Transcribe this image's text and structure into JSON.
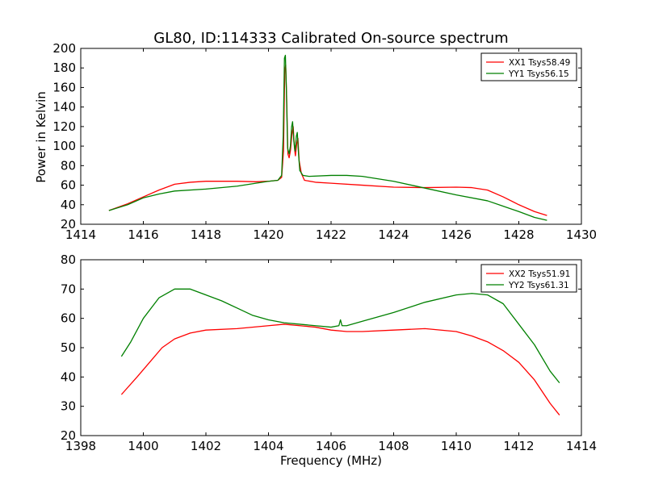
{
  "figure": {
    "title": "GL80, ID:114333 Calibrated On-source spectrum",
    "ylabel": "Power in Kelvin",
    "xlabel": "Frequency (MHz)"
  },
  "chart_data": [
    {
      "type": "line",
      "title": "GL80, ID:114333 Calibrated On-source spectrum",
      "ylabel": "Power in Kelvin",
      "xlabel": "",
      "xlim": [
        1414,
        1430
      ],
      "ylim": [
        20,
        200
      ],
      "xticks": [
        1414,
        1416,
        1418,
        1420,
        1422,
        1424,
        1426,
        1428,
        1430
      ],
      "yticks": [
        20,
        40,
        60,
        80,
        100,
        120,
        140,
        160,
        180,
        200
      ],
      "grid": false,
      "legend_position": "top-right",
      "series": [
        {
          "name": "XX1 Tsys58.49",
          "color": "#ff0000",
          "points": [
            [
              1414.9,
              34
            ],
            [
              1415.5,
              41
            ],
            [
              1416.0,
              48
            ],
            [
              1416.5,
              55
            ],
            [
              1417.0,
              61
            ],
            [
              1417.5,
              63
            ],
            [
              1418.0,
              64
            ],
            [
              1419.0,
              64
            ],
            [
              1419.6,
              63.5
            ],
            [
              1420.0,
              64
            ],
            [
              1420.3,
              65
            ],
            [
              1420.42,
              68
            ],
            [
              1420.48,
              95
            ],
            [
              1420.52,
              178
            ],
            [
              1420.55,
              183
            ],
            [
              1420.58,
              150
            ],
            [
              1420.62,
              92
            ],
            [
              1420.66,
              88
            ],
            [
              1420.7,
              95
            ],
            [
              1420.75,
              112
            ],
            [
              1420.79,
              120
            ],
            [
              1420.83,
              98
            ],
            [
              1420.86,
              90
            ],
            [
              1420.9,
              102
            ],
            [
              1420.94,
              108
            ],
            [
              1420.98,
              85
            ],
            [
              1421.05,
              72
            ],
            [
              1421.15,
              65
            ],
            [
              1421.5,
              63
            ],
            [
              1422.0,
              62
            ],
            [
              1423.0,
              60
            ],
            [
              1424.0,
              58
            ],
            [
              1425.0,
              57.5
            ],
            [
              1426.0,
              58
            ],
            [
              1426.5,
              57.5
            ],
            [
              1427.0,
              55
            ],
            [
              1427.5,
              48
            ],
            [
              1428.0,
              40
            ],
            [
              1428.5,
              33
            ],
            [
              1428.9,
              29
            ]
          ]
        },
        {
          "name": "YY1 Tsys56.15",
          "color": "#008000",
          "points": [
            [
              1414.9,
              34
            ],
            [
              1415.5,
              40
            ],
            [
              1416.0,
              47
            ],
            [
              1416.5,
              51
            ],
            [
              1417.0,
              54
            ],
            [
              1418.0,
              56
            ],
            [
              1419.0,
              59
            ],
            [
              1419.6,
              62
            ],
            [
              1420.0,
              64
            ],
            [
              1420.3,
              65
            ],
            [
              1420.42,
              70
            ],
            [
              1420.47,
              110
            ],
            [
              1420.51,
              190
            ],
            [
              1420.54,
              193
            ],
            [
              1420.57,
              160
            ],
            [
              1420.61,
              98
            ],
            [
              1420.66,
              92
            ],
            [
              1420.7,
              100
            ],
            [
              1420.74,
              120
            ],
            [
              1420.77,
              125
            ],
            [
              1420.81,
              105
            ],
            [
              1420.85,
              95
            ],
            [
              1420.89,
              110
            ],
            [
              1420.92,
              114
            ],
            [
              1420.96,
              92
            ],
            [
              1421.0,
              75
            ],
            [
              1421.1,
              70
            ],
            [
              1421.3,
              69
            ],
            [
              1422.0,
              70
            ],
            [
              1422.5,
              70
            ],
            [
              1423.0,
              69
            ],
            [
              1424.0,
              64
            ],
            [
              1425.0,
              57
            ],
            [
              1426.0,
              50
            ],
            [
              1427.0,
              44
            ],
            [
              1428.0,
              33
            ],
            [
              1428.5,
              27
            ],
            [
              1428.9,
              24
            ]
          ]
        }
      ]
    },
    {
      "type": "line",
      "title": "",
      "ylabel": "",
      "xlabel": "Frequency (MHz)",
      "xlim": [
        1398,
        1414
      ],
      "ylim": [
        20,
        80
      ],
      "xticks": [
        1398,
        1400,
        1402,
        1404,
        1406,
        1408,
        1410,
        1412,
        1414
      ],
      "yticks": [
        20,
        30,
        40,
        50,
        60,
        70,
        80
      ],
      "grid": false,
      "legend_position": "top-right",
      "series": [
        {
          "name": "XX2 Tsys51.91",
          "color": "#ff0000",
          "points": [
            [
              1399.3,
              34
            ],
            [
              1399.8,
              40
            ],
            [
              1400.2,
              45
            ],
            [
              1400.6,
              50
            ],
            [
              1401.0,
              53
            ],
            [
              1401.5,
              55
            ],
            [
              1402.0,
              56
            ],
            [
              1403.0,
              56.5
            ],
            [
              1404.0,
              57.5
            ],
            [
              1404.5,
              58
            ],
            [
              1405.0,
              57.5
            ],
            [
              1405.5,
              57
            ],
            [
              1406.0,
              56
            ],
            [
              1406.5,
              55.5
            ],
            [
              1407.0,
              55.5
            ],
            [
              1408.0,
              56
            ],
            [
              1409.0,
              56.5
            ],
            [
              1410.0,
              55.5
            ],
            [
              1410.5,
              54
            ],
            [
              1411.0,
              52
            ],
            [
              1411.5,
              49
            ],
            [
              1412.0,
              45
            ],
            [
              1412.5,
              39
            ],
            [
              1413.0,
              31
            ],
            [
              1413.3,
              27
            ]
          ]
        },
        {
          "name": "YY2 Tsys61.31",
          "color": "#008000",
          "points": [
            [
              1399.3,
              47
            ],
            [
              1399.6,
              52
            ],
            [
              1400.0,
              60
            ],
            [
              1400.5,
              67
            ],
            [
              1401.0,
              70
            ],
            [
              1401.5,
              70
            ],
            [
              1402.0,
              68
            ],
            [
              1402.5,
              66
            ],
            [
              1403.0,
              63.5
            ],
            [
              1403.5,
              61
            ],
            [
              1404.0,
              59.5
            ],
            [
              1404.5,
              58.5
            ],
            [
              1405.0,
              58
            ],
            [
              1405.5,
              57.5
            ],
            [
              1406.0,
              57
            ],
            [
              1406.25,
              57.5
            ],
            [
              1406.3,
              59.5
            ],
            [
              1406.35,
              57.5
            ],
            [
              1406.5,
              57.5
            ],
            [
              1407.0,
              59
            ],
            [
              1408.0,
              62
            ],
            [
              1409.0,
              65.5
            ],
            [
              1410.0,
              68
            ],
            [
              1410.5,
              68.5
            ],
            [
              1411.0,
              68
            ],
            [
              1411.5,
              65
            ],
            [
              1412.0,
              58
            ],
            [
              1412.5,
              51
            ],
            [
              1413.0,
              42
            ],
            [
              1413.3,
              38
            ]
          ]
        }
      ]
    }
  ]
}
